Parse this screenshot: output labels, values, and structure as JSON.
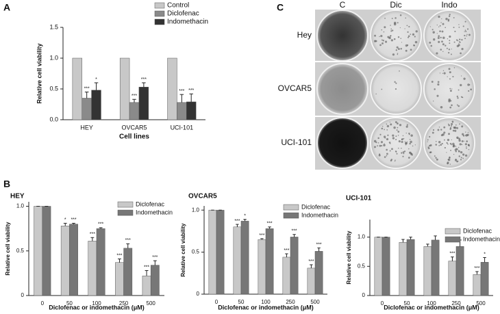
{
  "chart_data": [
    {
      "type": "bar",
      "panel": "A",
      "xlabel": "Cell lines",
      "ylabel": "Relative cell viability",
      "categories": [
        "HEY",
        "OVCAR5",
        "UCI-101"
      ],
      "series": [
        {
          "name": "Control",
          "color": "#c8c8c8",
          "values": [
            1,
            1,
            1
          ]
        },
        {
          "name": "Diclofenac",
          "color": "#8a8a8a",
          "values": [
            0.35,
            0.28,
            0.28
          ],
          "errors": [
            0.1,
            0.05,
            0.13
          ],
          "stars": [
            "***",
            "***",
            "***"
          ]
        },
        {
          "name": "Indomethacin",
          "color": "#333333",
          "values": [
            0.48,
            0.53,
            0.29
          ],
          "errors": [
            0.12,
            0.07,
            0.13
          ],
          "stars": [
            "*",
            "***",
            "***"
          ]
        }
      ],
      "ylim": [
        0,
        1.5
      ],
      "yticks": [
        {
          "value": 0,
          "label": "0.0"
        },
        0.5,
        {
          "value": 1,
          "label": "1.0"
        },
        1.5
      ]
    },
    {
      "type": "bar",
      "panel": "B",
      "title": "HEY",
      "xlabel": "Diclofenac or indomethacin (μM)",
      "ylabel": "Relative cell viability",
      "categories": [
        "0",
        "50",
        "100",
        "250",
        "500"
      ],
      "series": [
        {
          "name": "Diclofenac",
          "color": "#c8c8c8",
          "values": [
            1,
            0.78,
            0.61,
            0.37,
            0.22
          ],
          "errors": [
            0,
            0.03,
            0.04,
            0.04,
            0.06
          ],
          "stars": [
            null,
            "*",
            "***",
            "***",
            "***"
          ]
        },
        {
          "name": "Indomethacin",
          "color": "#777777",
          "values": [
            1,
            0.8,
            0.75,
            0.53,
            0.34
          ],
          "errors": [
            0,
            0.01,
            0.01,
            0.05,
            0.05
          ],
          "stars": [
            null,
            "***",
            "***",
            "***",
            "***"
          ]
        }
      ],
      "ylim": [
        0,
        1.05
      ],
      "yticks": [
        0,
        0.5,
        {
          "value": 1,
          "label": "1.0"
        }
      ]
    },
    {
      "type": "bar",
      "title": "OVCAR5",
      "xlabel": "Diclofenac or indomethacin (μM)",
      "ylabel": "Relative cell viability",
      "categories": [
        "0",
        "50",
        "100",
        "250",
        "500"
      ],
      "series": [
        {
          "name": "Diclofenac",
          "color": "#c8c8c8",
          "values": [
            1,
            0.8,
            0.65,
            0.44,
            0.31
          ],
          "errors": [
            0,
            0.03,
            0.01,
            0.04,
            0.04
          ],
          "stars": [
            null,
            "***",
            "***",
            "***",
            "***"
          ]
        },
        {
          "name": "Indomethacin",
          "color": "#777777",
          "values": [
            1,
            0.87,
            0.78,
            0.68,
            0.51
          ],
          "errors": [
            0,
            0.02,
            0.02,
            0.03,
            0.04
          ],
          "stars": [
            null,
            "*",
            "***",
            "***",
            "***"
          ]
        }
      ],
      "ylim": [
        0,
        1.05
      ],
      "yticks": [
        0,
        0.5,
        {
          "value": 1,
          "label": "1.0"
        }
      ]
    },
    {
      "type": "bar",
      "title": "UCI-101",
      "xlabel": "Diclofenac or indomethacin (μM)",
      "ylabel": "Relative cell viability",
      "categories": [
        "0",
        "50",
        "100",
        "250",
        "500"
      ],
      "series": [
        {
          "name": "Diclofenac",
          "color": "#c8c8c8",
          "values": [
            1,
            0.91,
            0.84,
            0.59,
            0.36
          ],
          "errors": [
            0,
            0.05,
            0.04,
            0.07,
            0.05
          ],
          "stars": [
            null,
            null,
            null,
            "***",
            "***"
          ]
        },
        {
          "name": "Indomethacin",
          "color": "#777777",
          "values": [
            1,
            0.96,
            0.95,
            0.84,
            0.57
          ],
          "errors": [
            0,
            0.04,
            0.07,
            0.11,
            0.08
          ],
          "stars": [
            null,
            null,
            null,
            null,
            "*"
          ]
        }
      ],
      "ylim": [
        0,
        1.3
      ],
      "yticks": [
        0,
        0.5,
        {
          "value": 1,
          "label": "1.0"
        }
      ]
    }
  ],
  "image_panel": {
    "panel": "C",
    "columns": [
      "C",
      "Dic",
      "Indo"
    ],
    "rows": [
      "Hey",
      "OVCAR5",
      "UCI-101"
    ]
  }
}
